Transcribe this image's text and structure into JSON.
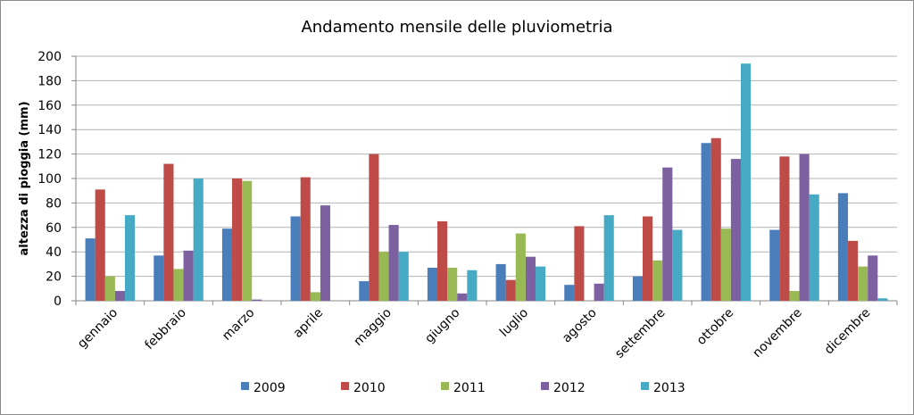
{
  "chart_data": {
    "type": "bar",
    "title": "Andamento mensile delle pluviometria",
    "xlabel": "",
    "ylabel": "altezza di pioggia (mm)",
    "ylim": [
      0,
      200
    ],
    "yticks": [
      0,
      20,
      40,
      60,
      80,
      100,
      120,
      140,
      160,
      180,
      200
    ],
    "grid": true,
    "legend_position": "bottom",
    "categories": [
      "gennaio",
      "febbraio",
      "marzo",
      "aprile",
      "maggio",
      "giugno",
      "luglio",
      "agosto",
      "settembre",
      "ottobre",
      "novembre",
      "dicembre"
    ],
    "series": [
      {
        "name": "2009",
        "color": "#4a7ebb",
        "values": [
          51,
          37,
          59,
          69,
          16,
          27,
          30,
          13,
          20,
          129,
          58,
          88
        ]
      },
      {
        "name": "2010",
        "color": "#be4b48",
        "values": [
          91,
          112,
          100,
          101,
          120,
          65,
          17,
          61,
          69,
          133,
          118,
          49
        ]
      },
      {
        "name": "2011",
        "color": "#98b954",
        "values": [
          20,
          26,
          98,
          7,
          40,
          27,
          55,
          0,
          33,
          59,
          8,
          28
        ]
      },
      {
        "name": "2012",
        "color": "#7d60a0",
        "values": [
          8,
          41,
          1,
          78,
          62,
          6,
          36,
          14,
          109,
          116,
          120,
          37
        ]
      },
      {
        "name": "2013",
        "color": "#46aac5",
        "values": [
          70,
          100,
          0,
          0,
          40,
          25,
          28,
          70,
          58,
          194,
          87,
          2
        ]
      }
    ]
  }
}
